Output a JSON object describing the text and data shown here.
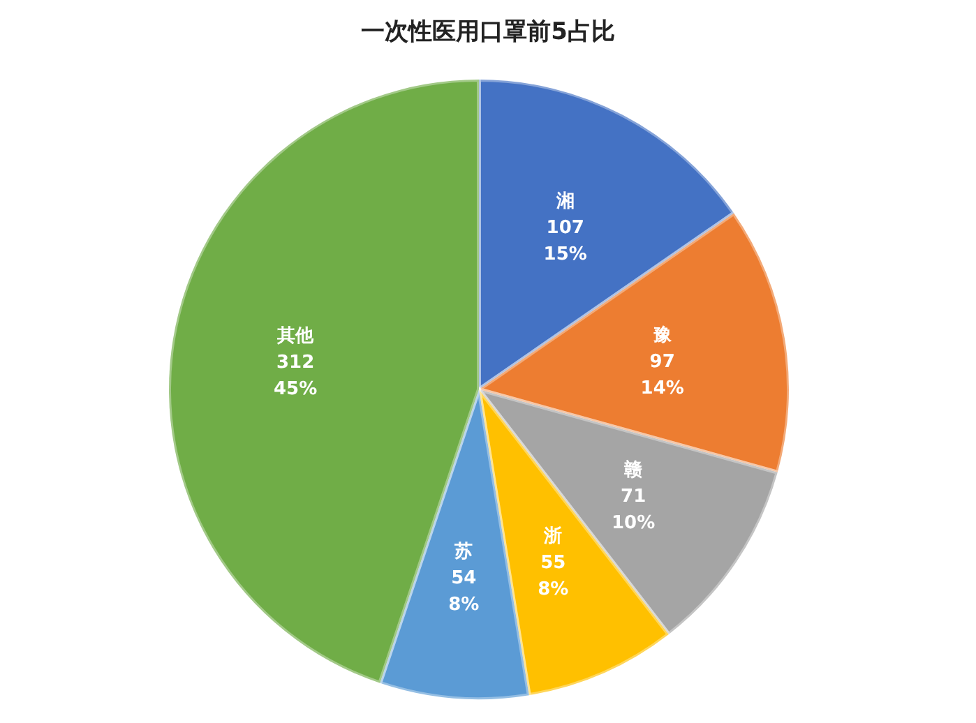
{
  "chart_data": {
    "type": "pie",
    "title": "一次性医用口罩前5占比",
    "categories": [
      "湘",
      "豫",
      "赣",
      "浙",
      "苏",
      "其他"
    ],
    "values": [
      107,
      97,
      71,
      55,
      54,
      312
    ],
    "colors": [
      "#4472c4",
      "#ed7d31",
      "#a5a5a5",
      "#ffc000",
      "#5b9bd5",
      "#70ad47"
    ],
    "value_labels": [
      "107\n15%",
      "97\n14%",
      "71\n10%",
      "55\n8%",
      "54\n8%",
      "312\n45%"
    ]
  }
}
